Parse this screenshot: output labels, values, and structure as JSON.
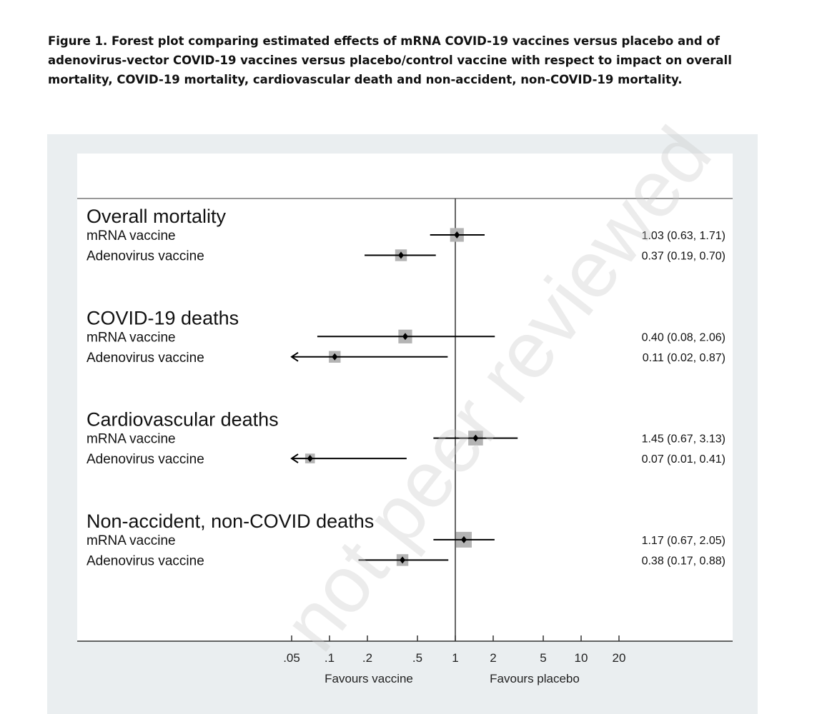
{
  "caption": "Figure 1. Forest plot comparing estimated effects of mRNA COVID-19 vaccines versus placebo and of adenovirus-vector COVID-19 vaccines versus placebo/control vaccine with respect to impact on overall mortality, COVID-19 mortality, cardiovascular death and non-accident, non-COVID-19 mortality.",
  "watermark": "not peer reviewed",
  "chart_data": {
    "type": "forest",
    "scale": "log",
    "xlim": [
      0.05,
      20
    ],
    "ticks": [
      0.05,
      0.1,
      0.2,
      0.5,
      1,
      2,
      5,
      10,
      20
    ],
    "tick_labels": [
      ".05",
      ".1",
      ".2",
      ".5",
      "1",
      "2",
      "5",
      "10",
      "20"
    ],
    "reference_line": 1,
    "xlabel_left": "Favours vaccine",
    "xlabel_right": "Favours placebo",
    "groups": [
      {
        "title": "Overall mortality",
        "rows": [
          {
            "label": "mRNA vaccine",
            "estimate": 1.03,
            "lower": 0.63,
            "upper": 1.71,
            "text": "1.03 (0.63, 1.71)",
            "weight": 0.8
          },
          {
            "label": "Adenovirus vaccine",
            "estimate": 0.37,
            "lower": 0.19,
            "upper": 0.7,
            "text": "0.37 (0.19, 0.70)",
            "weight": 0.6
          }
        ]
      },
      {
        "title": "COVID-19 deaths",
        "rows": [
          {
            "label": "mRNA vaccine",
            "estimate": 0.4,
            "lower": 0.08,
            "upper": 2.06,
            "text": "0.40 (0.08, 2.06)",
            "weight": 0.8
          },
          {
            "label": "Adenovirus vaccine",
            "estimate": 0.11,
            "lower": 0.02,
            "upper": 0.87,
            "text": "0.11 (0.02, 0.87)",
            "weight": 0.6
          }
        ]
      },
      {
        "title": "Cardiovascular deaths",
        "rows": [
          {
            "label": "mRNA vaccine",
            "estimate": 1.45,
            "lower": 0.67,
            "upper": 3.13,
            "text": "1.45 (0.67, 3.13)",
            "weight": 0.9
          },
          {
            "label": "Adenovirus vaccine",
            "estimate": 0.07,
            "lower": 0.01,
            "upper": 0.41,
            "text": "0.07 (0.01, 0.41)",
            "weight": 0.4
          }
        ]
      },
      {
        "title": "Non-accident, non-COVID deaths",
        "rows": [
          {
            "label": "mRNA vaccine",
            "estimate": 1.17,
            "lower": 0.67,
            "upper": 2.05,
            "text": "1.17 (0.67, 2.05)",
            "weight": 1.0
          },
          {
            "label": "Adenovirus vaccine",
            "estimate": 0.38,
            "lower": 0.17,
            "upper": 0.88,
            "text": "0.38 (0.17, 0.88)",
            "weight": 0.6
          }
        ]
      }
    ],
    "colors": {
      "box": "#b4b4b4",
      "line": "#000000",
      "panel": "#eaeef0"
    }
  }
}
